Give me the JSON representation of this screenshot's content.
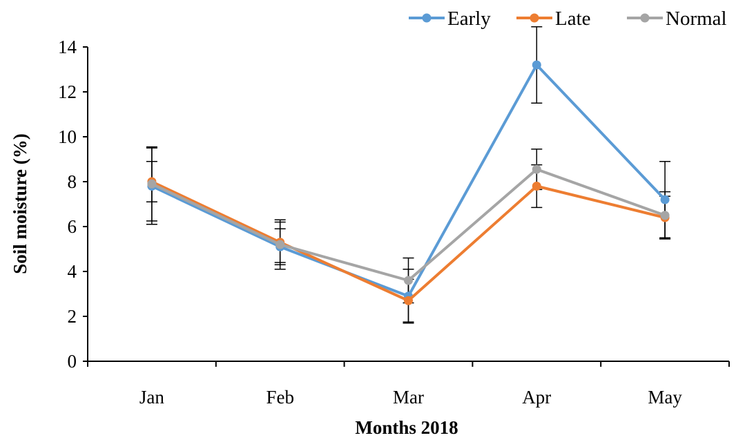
{
  "chart_data": {
    "type": "line",
    "title": "",
    "xlabel": "Months 2018",
    "ylabel": "Soil moisture (%)",
    "categories": [
      "Jan",
      "Feb",
      "Mar",
      "Apr",
      "May"
    ],
    "ylim": [
      0,
      14
    ],
    "yticks": [
      0,
      2,
      4,
      6,
      8,
      10,
      12,
      14
    ],
    "grid": false,
    "legend_position": "top-right",
    "series": [
      {
        "name": "Early",
        "color": "#5B9BD5",
        "values": [
          7.8,
          5.1,
          2.9,
          13.2,
          7.2
        ],
        "error": [
          1.7,
          0.8,
          1.2,
          1.7,
          1.7
        ]
      },
      {
        "name": "Late",
        "color": "#ED7D31",
        "values": [
          8.0,
          5.3,
          2.7,
          7.8,
          6.4
        ],
        "error": [
          0.9,
          0.9,
          0.95,
          0.95,
          0.95
        ]
      },
      {
        "name": "Normal",
        "color": "#A5A5A5",
        "values": [
          7.9,
          5.2,
          3.6,
          8.55,
          6.5
        ],
        "error": [
          1.65,
          1.1,
          1.0,
          0.9,
          1.05
        ]
      }
    ]
  }
}
